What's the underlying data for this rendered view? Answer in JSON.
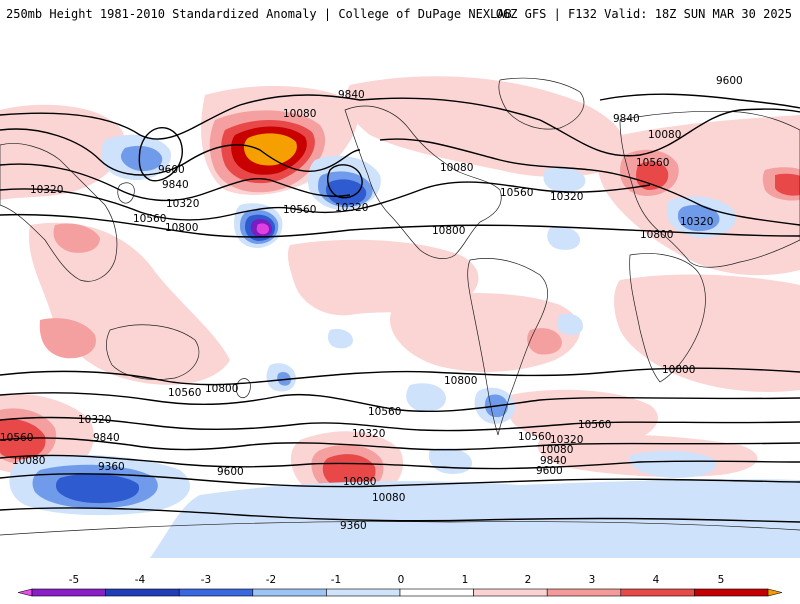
{
  "header": {
    "title_left": "250mb Height 1981-2010 Standardized Anomaly | College of DuPage NEXLAB",
    "title_right": "06Z GFS | F132 Valid: 18Z SUN MAR 30 2025"
  },
  "colorbar": {
    "tick_labels": [
      "-5",
      "-4",
      "-3",
      "-2",
      "-1",
      "0",
      "1",
      "2",
      "3",
      "4",
      "5"
    ],
    "colors": [
      "#e64ce6",
      "#8a1fc7",
      "#1f3fb8",
      "#3a68e0",
      "#9ec4f5",
      "#cfe3fb",
      "#ffffff",
      "#fbd2d2",
      "#f59a9a",
      "#e84a4a",
      "#c40000",
      "#f59a00"
    ]
  },
  "map": {
    "anomaly_colors": {
      "pos1": "#fbd4d4",
      "pos2": "#f5a0a0",
      "pos3": "#e84848",
      "pos4": "#c80000",
      "pos5": "#f5a000",
      "neg1": "#cfe2fb",
      "neg2": "#6f9bea",
      "neg3": "#2f5bd0",
      "neg4": "#7a1ec0",
      "neg5": "#e040e0"
    },
    "contour_labels": [
      "9840",
      "9600",
      "10080",
      "9600",
      "9840",
      "10320",
      "10560",
      "10320",
      "10800",
      "10560",
      "10320",
      "10080",
      "10560",
      "10320",
      "10800",
      "9840",
      "10080",
      "10560",
      "10320",
      "10800",
      "10800",
      "10560",
      "10800",
      "10560",
      "10320",
      "10800",
      "10560",
      "10320",
      "10560",
      "10080",
      "9840",
      "10320",
      "10080",
      "9840",
      "9600",
      "10560",
      "10080",
      "9360",
      "9600",
      "10080",
      "9840",
      "9360"
    ]
  }
}
